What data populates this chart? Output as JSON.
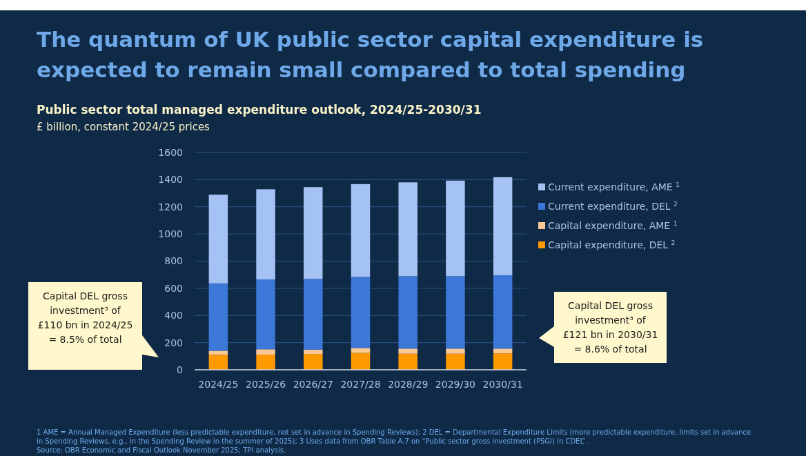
{
  "chart_data": {
    "type": "bar",
    "stacked": true,
    "title": "The quantum of UK public sector capital expenditure is\nexpected to remain small compared to total spending",
    "subtitle": "Public sector total managed expenditure outlook, 2024/25-2030/31",
    "ylabel": "£ billion, constant 2024/25 prices",
    "categories": [
      "2024/25",
      "2025/26",
      "2026/27",
      "2027/28",
      "2028/29",
      "2029/30",
      "2030/31"
    ],
    "series": [
      {
        "name": "Capital expenditure, DEL $^{2}$",
        "color": "#ff9900",
        "values": [
          110,
          111,
          116,
          124,
          118,
          118,
          121
        ]
      },
      {
        "name": "Capital expenditure, AME $^{1}$",
        "color": "#fcc994",
        "values": [
          30,
          40,
          33,
          36,
          38,
          38,
          35
        ]
      },
      {
        "name": "Current expenditure, DEL $^{2}$",
        "color": "#3c78d8",
        "values": [
          496,
          514,
          520,
          524,
          533,
          533,
          540
        ]
      },
      {
        "name": "Current expenditure, AME $^{1}$",
        "color": "#a4c2f4",
        "values": [
          653,
          664,
          676,
          683,
          691,
          704,
          722
        ]
      }
    ],
    "ylim": [
      0,
      1600
    ],
    "yticks": [
      0,
      200,
      400,
      600,
      800,
      1000,
      1200,
      1400,
      1600
    ],
    "grid": "y",
    "legend": "right",
    "annotations": [
      "Capital DEL gross\ninvestment³ of\n£110 bn in 2024/25\n= 8.5% of total",
      "Capital DEL gross\ninvestment³ of\n£121 bn in 2030/31\n= 8.6% of total",
      "1 AME = Annual Managed Expenditure (less predictable expenditure, not set in advance in Spending Reviews); 2 DEL = Departmental Expenditure Limits (more predictable expenditure, limits set in advance\nin Spending Reviews, e.g., in the Spending Review in the summer of 2025); 3  Uses data from OBR Table A.7 on “Public sector gross investment (PSGI) in CDEL” .",
      "Source: OBR Economic and Fiscal Outlook November 2025; TPI analysis."
    ]
  }
}
